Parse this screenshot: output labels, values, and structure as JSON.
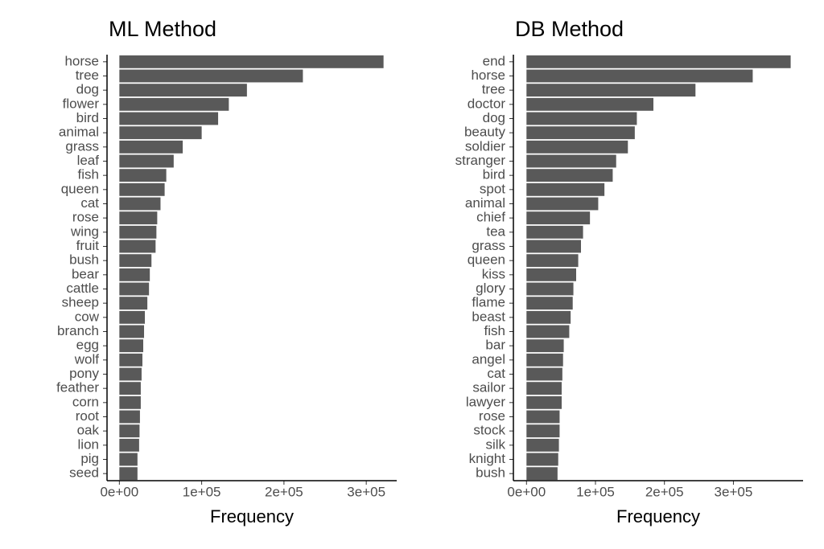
{
  "chart_data": [
    {
      "type": "bar",
      "orientation": "horizontal",
      "title": "ML Method",
      "x_label": "Frequency",
      "color": "#595959",
      "categories": [
        "horse",
        "tree",
        "dog",
        "flower",
        "bird",
        "animal",
        "grass",
        "leaf",
        "fish",
        "queen",
        "cat",
        "rose",
        "wing",
        "fruit",
        "bush",
        "bear",
        "cattle",
        "sheep",
        "cow",
        "branch",
        "egg",
        "wolf",
        "pony",
        "feather",
        "corn",
        "root",
        "oak",
        "lion",
        "pig",
        "seed"
      ],
      "values": [
        321000,
        223000,
        155000,
        133000,
        120000,
        100000,
        77000,
        66000,
        57000,
        55000,
        50000,
        46000,
        45000,
        44000,
        39000,
        37000,
        36000,
        34000,
        31000,
        30000,
        29000,
        28000,
        27000,
        26000,
        26000,
        25000,
        24500,
        24000,
        22000,
        22000
      ],
      "xlim": [
        -15000,
        337000
      ],
      "xticks": [
        {
          "value": 0,
          "label": "0e+00"
        },
        {
          "value": 100000,
          "label": "1e+05"
        },
        {
          "value": 200000,
          "label": "2e+05"
        },
        {
          "value": 300000,
          "label": "3e+05"
        }
      ]
    },
    {
      "type": "bar",
      "orientation": "horizontal",
      "title": "DB Method",
      "x_label": "Frequency",
      "color": "#595959",
      "categories": [
        "end",
        "horse",
        "tree",
        "doctor",
        "dog",
        "beauty",
        "soldier",
        "stranger",
        "bird",
        "spot",
        "animal",
        "chief",
        "tea",
        "grass",
        "queen",
        "kiss",
        "glory",
        "flame",
        "beast",
        "fish",
        "bar",
        "angel",
        "cat",
        "sailor",
        "lawyer",
        "rose",
        "stock",
        "silk",
        "knight",
        "bush"
      ],
      "values": [
        383000,
        328000,
        245000,
        184000,
        160000,
        157000,
        147000,
        130000,
        125000,
        113000,
        104000,
        92000,
        82000,
        79000,
        75000,
        72000,
        68000,
        67000,
        64000,
        62000,
        54000,
        53000,
        52000,
        51000,
        51000,
        48000,
        48000,
        47000,
        46000,
        45000
      ],
      "xlim": [
        -19000,
        401000
      ],
      "xticks": [
        {
          "value": 0,
          "label": "0e+00"
        },
        {
          "value": 100000,
          "label": "1e+05"
        },
        {
          "value": 200000,
          "label": "2e+05"
        },
        {
          "value": 300000,
          "label": "3e+05"
        }
      ]
    }
  ]
}
